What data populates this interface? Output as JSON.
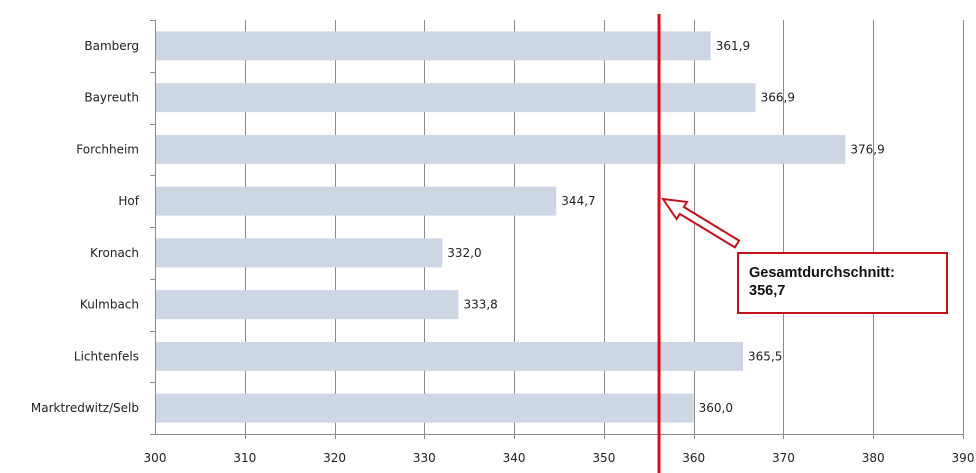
{
  "chart_data": {
    "type": "bar",
    "orientation": "horizontal",
    "categories": [
      "Bamberg",
      "Bayreuth",
      "Forchheim",
      "Hof",
      "Kronach",
      "Kulmbach",
      "Lichtenfels",
      "Marktredwitz/Selb"
    ],
    "values": [
      361.9,
      366.9,
      376.9,
      344.7,
      332.0,
      333.8,
      365.5,
      360.0
    ],
    "data_labels": [
      "361,9",
      "366,9",
      "376,9",
      "344,7",
      "332,0",
      "333,8",
      "365,5",
      "360,0"
    ],
    "xlim": [
      300,
      390
    ],
    "x_ticks": [
      300,
      310,
      320,
      330,
      340,
      350,
      360,
      370,
      380,
      390
    ],
    "grid": "vertical",
    "bar_color": "#cdd7e4",
    "reference_line": {
      "value": 356.7,
      "color": "#d40f1a"
    },
    "annotation": {
      "line1": "Gesamtdurchschnitt:",
      "line2": "356,7",
      "border_color": "#c0121c"
    }
  }
}
